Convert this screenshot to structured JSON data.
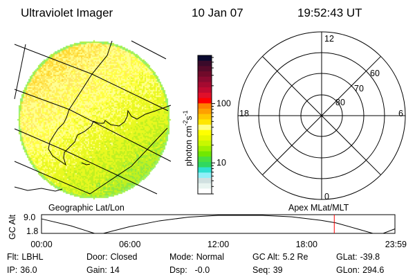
{
  "header": {
    "instrument": "Ultraviolet Imager",
    "date": "10 Jan 07",
    "time": "19:52:43 UT"
  },
  "colors": {
    "time_marker": "#ff0000",
    "colorbar": [
      "#0a0a30",
      "#3a0a2a",
      "#550a2a",
      "#700a2a",
      "#8a0a30",
      "#a50a30",
      "#c00a30",
      "#e0102a",
      "#ff0000",
      "#ff8000",
      "#ffa000",
      "#ffc800",
      "#ffe600",
      "#ffff80",
      "#ffff00",
      "#e8f800",
      "#c8f800",
      "#a0f000",
      "#70e800",
      "#48e040",
      "#30d860",
      "#30e0d0",
      "#90f0f8",
      "#d0e0e0",
      "#e8f4f0",
      "#ffffff"
    ]
  },
  "chart_data": [
    {
      "type": "heatmap",
      "name_label": "Geographic Lat/Lon",
      "description_colormap": "log",
      "colorbar": {
        "label": "photon cm",
        "label_exp1": "-2",
        "label_mid": "s",
        "label_exp2": "-1",
        "scale": "log",
        "range": [
          3,
          650
        ],
        "ticks": [
          {
            "value": 10,
            "label": "10"
          },
          {
            "value": 100,
            "label": "100"
          }
        ]
      }
    },
    {
      "type": "polar-grid",
      "name_label": "Apex MLat/MLT",
      "mlt_labels": [
        "12",
        "6",
        "0",
        "18"
      ],
      "lat_circles": [
        {
          "value": 80,
          "label": "80"
        },
        {
          "value": 70,
          "label": "70"
        },
        {
          "value": 60,
          "label": "60"
        },
        {
          "value": 50,
          "label": ""
        }
      ]
    },
    {
      "type": "line",
      "ylabel": "GC Alt",
      "ylim": [
        1.8,
        9.0
      ],
      "yticks": [
        "9.0",
        "1.8"
      ],
      "xlim": [
        0,
        24
      ],
      "xticks": [
        {
          "value": 0,
          "label": "00:00"
        },
        {
          "value": 6,
          "label": "06:00"
        },
        {
          "value": 12,
          "label": "12:00"
        },
        {
          "value": 18,
          "label": "18:00"
        },
        {
          "value": 23.98,
          "label": "23:59"
        }
      ],
      "x": [
        0,
        2,
        3.6,
        4.2,
        6,
        8,
        10,
        12,
        15,
        17,
        19,
        20,
        21.5,
        22.5,
        23.2,
        24
      ],
      "y": [
        7.6,
        4.8,
        1.8,
        1.8,
        4.5,
        6.8,
        8.3,
        9.0,
        9.0,
        8.4,
        7.0,
        6.0,
        3.5,
        1.8,
        1.8,
        3.6
      ],
      "current_time_hours": 19.88
    }
  ],
  "info": [
    [
      {
        "label": "Flt:",
        "value": "LBHL"
      },
      {
        "label": "Door:",
        "value": "Closed"
      },
      {
        "label": "Mode:",
        "value": "Normal"
      },
      {
        "label": "GC Alt:",
        "value": "5.2 Re"
      },
      {
        "label": "GLat:",
        "value": "-39.8"
      }
    ],
    [
      {
        "label": "IP:",
        "value": "36.0"
      },
      {
        "label": "Gain:",
        "value": "14"
      },
      {
        "label": "Dsp:",
        "value": "  -0.0"
      },
      {
        "label": "Seq:",
        "value": "39"
      },
      {
        "label": "GLon:",
        "value": "294.6"
      }
    ]
  ]
}
